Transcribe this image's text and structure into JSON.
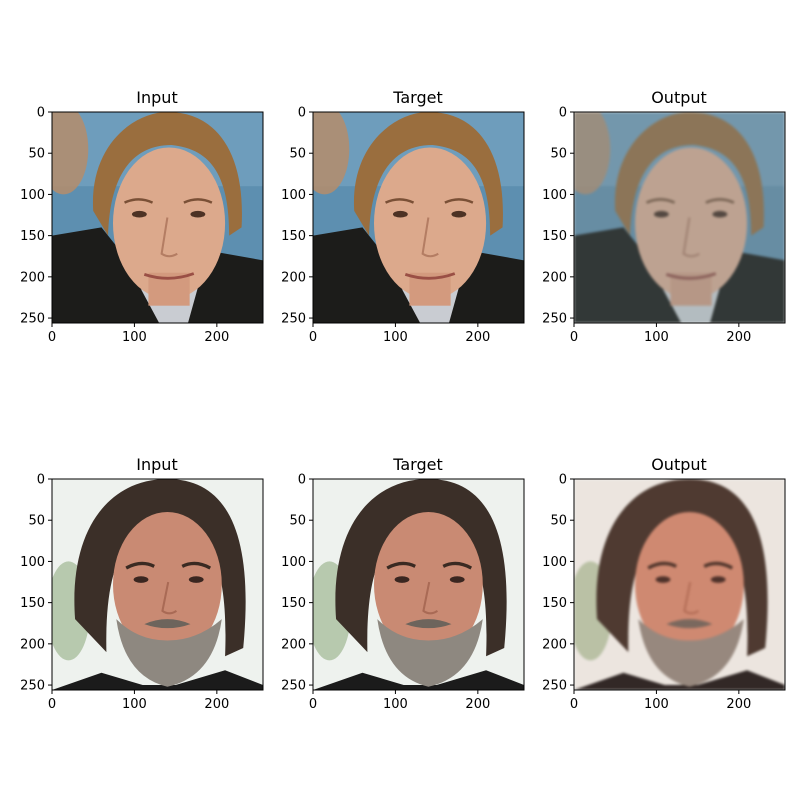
{
  "chart_data": {
    "type": "image-grid",
    "layout": {
      "rows": 2,
      "cols": 3
    },
    "xticks": [
      "0",
      "100",
      "200"
    ],
    "yticks": [
      "0",
      "50",
      "100",
      "150",
      "200",
      "250"
    ],
    "xtick_values": [
      0,
      100,
      200
    ],
    "ytick_values": [
      0,
      50,
      100,
      150,
      200,
      250
    ],
    "xlim": [
      0,
      256
    ],
    "ylim": [
      256,
      0
    ],
    "panels": [
      {
        "title": "Input",
        "row": 0,
        "col": 0,
        "image": "face-1-input"
      },
      {
        "title": "Target",
        "row": 0,
        "col": 1,
        "image": "face-1-target"
      },
      {
        "title": "Output",
        "row": 0,
        "col": 2,
        "image": "face-1-output"
      },
      {
        "title": "Input",
        "row": 1,
        "col": 0,
        "image": "face-2-input"
      },
      {
        "title": "Target",
        "row": 1,
        "col": 1,
        "image": "face-2-target"
      },
      {
        "title": "Output",
        "row": 1,
        "col": 2,
        "image": "face-2-output"
      }
    ]
  },
  "colors": {
    "face1_background": "#5d8fb0",
    "face1_hair": "#9a6e3e",
    "face1_skin": "#dca98c",
    "face1_suit": "#1c1c1a",
    "face2_background": "#eef2ee",
    "face2_hair": "#3b2f28",
    "face2_skin": "#c98a73",
    "face2_beard": "#8e8880"
  }
}
